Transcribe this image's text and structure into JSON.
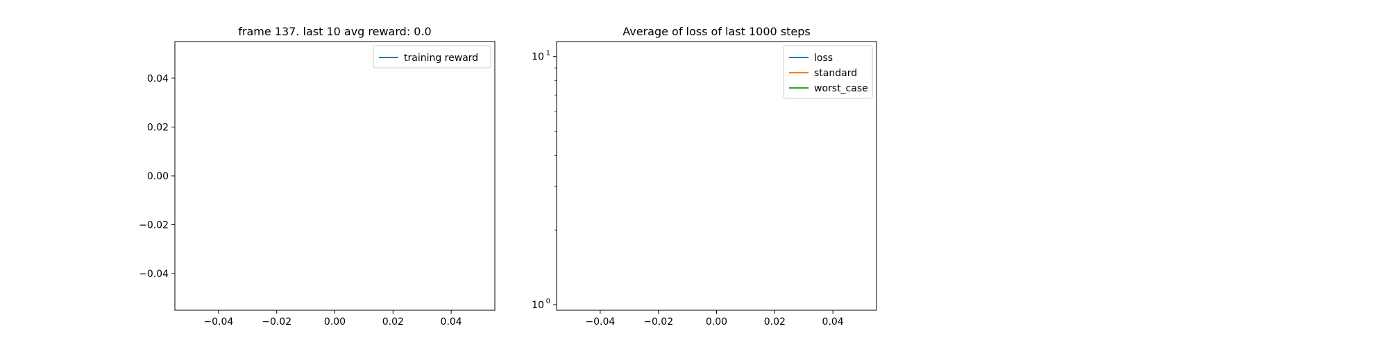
{
  "chart_data": [
    {
      "type": "line",
      "title": "frame 137. last 10 avg reward: 0.0",
      "xlabel": "",
      "ylabel": "",
      "xlim": [
        -0.055,
        0.055
      ],
      "ylim": [
        -0.055,
        0.055
      ],
      "x_ticks": [
        -0.04,
        -0.02,
        0.0,
        0.02,
        0.04
      ],
      "x_tick_labels": [
        "−0.04",
        "−0.02",
        "0.00",
        "0.02",
        "0.04"
      ],
      "y_ticks": [
        0.04,
        0.02,
        0.0,
        -0.02,
        -0.04
      ],
      "y_tick_labels": [
        "0.04",
        "0.02",
        "0.00",
        "−0.02",
        "−0.04"
      ],
      "legend_position": "top-right",
      "grid": false,
      "series": [
        {
          "name": "training reward",
          "color": "#1f77b4",
          "x": [],
          "y": []
        }
      ]
    },
    {
      "type": "line",
      "title": "Average of loss of last 1000 steps",
      "xlabel": "",
      "ylabel": "",
      "y_scale": "log",
      "xlim": [
        -0.055,
        0.055
      ],
      "ylim": [
        0.95,
        11.5
      ],
      "x_ticks": [
        -0.04,
        -0.02,
        0.0,
        0.02,
        0.04
      ],
      "x_tick_labels": [
        "−0.04",
        "−0.02",
        "0.00",
        "0.02",
        "0.04"
      ],
      "y_major_ticks": [
        {
          "value": 10,
          "base": "10",
          "exp": "1"
        },
        {
          "value": 1,
          "base": "10",
          "exp": "0"
        }
      ],
      "y_minor_ticks": [
        2,
        3,
        4,
        5,
        6,
        7,
        8,
        9
      ],
      "legend_position": "top-right",
      "grid": false,
      "series": [
        {
          "name": "loss",
          "color": "#1f77b4",
          "x": [],
          "y": []
        },
        {
          "name": "standard",
          "color": "#ff7f0e",
          "x": [],
          "y": []
        },
        {
          "name": "worst_case",
          "color": "#2ca02c",
          "x": [],
          "y": []
        }
      ]
    }
  ]
}
